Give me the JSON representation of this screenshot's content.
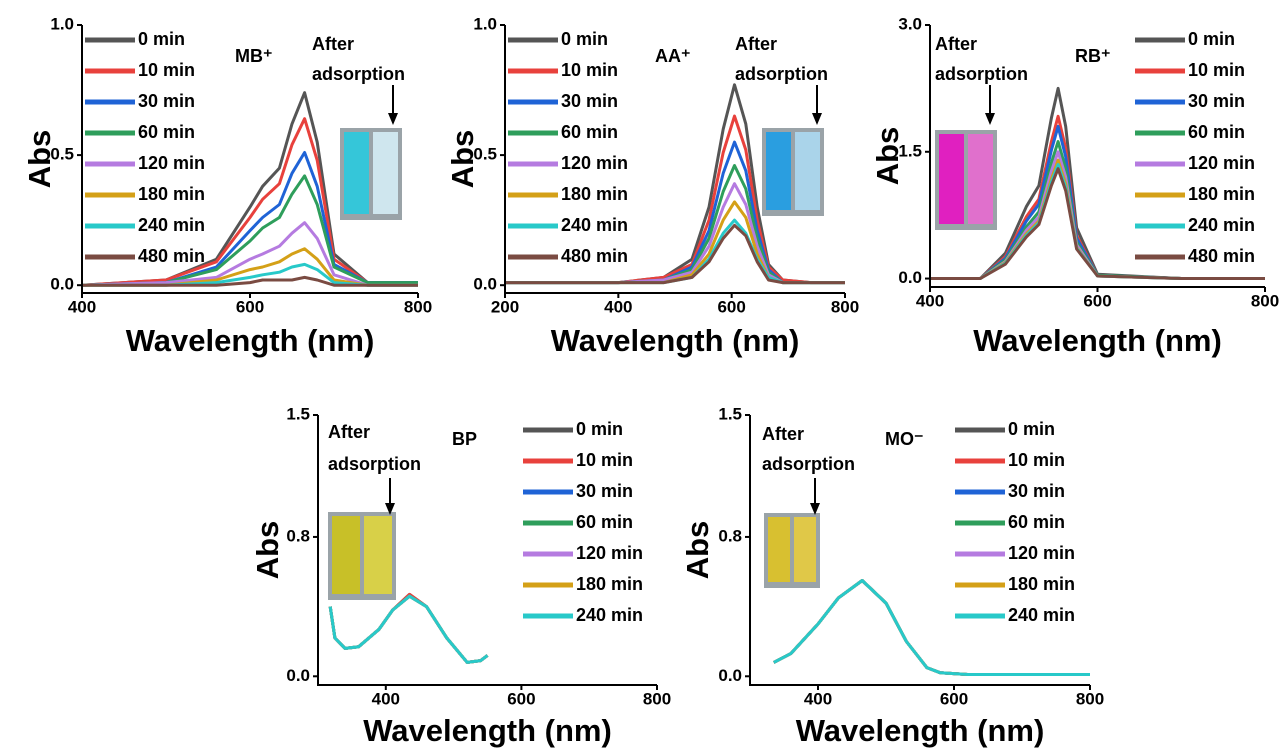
{
  "chart_data": [
    {
      "type": "line",
      "annotation": "MB⁺",
      "after_label": [
        "After",
        "adsorption"
      ],
      "xlabel": "Wavelength (nm)",
      "ylabel": "Abs",
      "xlim": [
        400,
        800
      ],
      "ylim": [
        -0.03,
        1.0
      ],
      "xticks": [
        400,
        600,
        800
      ],
      "yticks": [
        {
          "value": 0,
          "label": "0.0"
        },
        0.5,
        {
          "value": 1,
          "label": "1.0"
        }
      ],
      "x": [
        400,
        500,
        560,
        600,
        615,
        635,
        650,
        665,
        680,
        700,
        740,
        800
      ],
      "series": [
        {
          "name": "0 min",
          "color": "#555555",
          "values": [
            0,
            0.02,
            0.1,
            0.3,
            0.38,
            0.45,
            0.62,
            0.74,
            0.55,
            0.12,
            0.01,
            0.01
          ]
        },
        {
          "name": "10 min",
          "color": "#e8413c",
          "values": [
            0,
            0.02,
            0.09,
            0.26,
            0.33,
            0.39,
            0.54,
            0.64,
            0.48,
            0.1,
            0.01,
            0.01
          ]
        },
        {
          "name": "30 min",
          "color": "#1f63d6",
          "values": [
            0,
            0.01,
            0.07,
            0.21,
            0.26,
            0.31,
            0.43,
            0.51,
            0.38,
            0.08,
            0.01,
            0.01
          ]
        },
        {
          "name": "60 min",
          "color": "#2e9e5b",
          "values": [
            0,
            0.01,
            0.06,
            0.17,
            0.22,
            0.26,
            0.35,
            0.42,
            0.31,
            0.07,
            0.01,
            0.01
          ]
        },
        {
          "name": "120 min",
          "color": "#b57be0",
          "values": [
            0,
            0.01,
            0.03,
            0.1,
            0.12,
            0.15,
            0.2,
            0.24,
            0.18,
            0.04,
            0,
            0
          ]
        },
        {
          "name": "180 min",
          "color": "#d4a017",
          "values": [
            0,
            0,
            0.02,
            0.06,
            0.07,
            0.09,
            0.12,
            0.14,
            0.1,
            0.02,
            0,
            0
          ]
        },
        {
          "name": "240 min",
          "color": "#28c9c9",
          "values": [
            0,
            0,
            0.01,
            0.03,
            0.04,
            0.05,
            0.07,
            0.08,
            0.06,
            0.01,
            0,
            0
          ]
        },
        {
          "name": "480 min",
          "color": "#7a4b42",
          "values": [
            0,
            0,
            0,
            0.01,
            0.02,
            0.02,
            0.02,
            0.03,
            0.02,
            0,
            0,
            0
          ]
        }
      ]
    },
    {
      "type": "line",
      "annotation": "AA⁺",
      "after_label": [
        "After",
        "adsorption"
      ],
      "xlabel": "Wavelength (nm)",
      "ylabel": "Abs",
      "xlim": [
        200,
        800
      ],
      "ylim": [
        -0.03,
        1.0
      ],
      "xticks": [
        200,
        400,
        600,
        800
      ],
      "yticks": [
        {
          "value": 0,
          "label": "0.0"
        },
        0.5,
        {
          "value": 1,
          "label": "1.0"
        }
      ],
      "x": [
        200,
        400,
        480,
        530,
        560,
        585,
        605,
        625,
        645,
        665,
        690,
        740,
        800
      ],
      "series": [
        {
          "name": "0 min",
          "color": "#555555",
          "values": [
            0.01,
            0.01,
            0.03,
            0.1,
            0.3,
            0.6,
            0.77,
            0.62,
            0.3,
            0.08,
            0.02,
            0.01,
            0.01
          ]
        },
        {
          "name": "10 min",
          "color": "#e8413c",
          "values": [
            0.01,
            0.01,
            0.03,
            0.08,
            0.25,
            0.51,
            0.65,
            0.52,
            0.25,
            0.07,
            0.02,
            0.01,
            0.01
          ]
        },
        {
          "name": "30 min",
          "color": "#1f63d6",
          "values": [
            0.01,
            0.01,
            0.02,
            0.07,
            0.21,
            0.43,
            0.55,
            0.44,
            0.21,
            0.06,
            0.01,
            0.01,
            0.01
          ]
        },
        {
          "name": "60 min",
          "color": "#2e9e5b",
          "values": [
            0.01,
            0.01,
            0.02,
            0.06,
            0.18,
            0.36,
            0.46,
            0.37,
            0.18,
            0.05,
            0.01,
            0.01,
            0.01
          ]
        },
        {
          "name": "120 min",
          "color": "#b57be0",
          "values": [
            0.01,
            0.01,
            0.02,
            0.05,
            0.15,
            0.3,
            0.39,
            0.31,
            0.15,
            0.04,
            0.01,
            0.01,
            0.01
          ]
        },
        {
          "name": "180 min",
          "color": "#d4a017",
          "values": [
            0.01,
            0.01,
            0.01,
            0.04,
            0.12,
            0.25,
            0.32,
            0.26,
            0.12,
            0.03,
            0.01,
            0.01,
            0.01
          ]
        },
        {
          "name": "240 min",
          "color": "#28c9c9",
          "values": [
            0.01,
            0.01,
            0.01,
            0.03,
            0.1,
            0.2,
            0.25,
            0.2,
            0.1,
            0.03,
            0.01,
            0.01,
            0.01
          ]
        },
        {
          "name": "480 min",
          "color": "#7a4b42",
          "values": [
            0.01,
            0.01,
            0.01,
            0.03,
            0.09,
            0.18,
            0.23,
            0.19,
            0.09,
            0.02,
            0.01,
            0.01,
            0.01
          ]
        }
      ]
    },
    {
      "type": "line",
      "annotation": "RB⁺",
      "after_label": [
        "After",
        "adsorption"
      ],
      "xlabel": "Wavelength (nm)",
      "ylabel": "Abs",
      "xlim": [
        400,
        800
      ],
      "ylim": [
        -0.1,
        3.0
      ],
      "xticks": [
        400,
        600,
        800
      ],
      "yticks": [
        {
          "value": 0,
          "label": "0.0"
        },
        1.5,
        {
          "value": 3,
          "label": "3.0"
        }
      ],
      "x": [
        400,
        460,
        490,
        515,
        530,
        545,
        553,
        562,
        575,
        600,
        700,
        800
      ],
      "series": [
        {
          "name": "0 min",
          "color": "#555555",
          "values": [
            0,
            0,
            0.3,
            0.85,
            1.1,
            1.9,
            2.25,
            1.8,
            0.6,
            0.05,
            0,
            0
          ]
        },
        {
          "name": "10 min",
          "color": "#e8413c",
          "values": [
            0,
            0,
            0.26,
            0.73,
            0.94,
            1.62,
            1.92,
            1.54,
            0.51,
            0.04,
            0,
            0
          ]
        },
        {
          "name": "30 min",
          "color": "#1f63d6",
          "values": [
            0,
            0,
            0.24,
            0.68,
            0.88,
            1.52,
            1.8,
            1.44,
            0.48,
            0.04,
            0,
            0
          ]
        },
        {
          "name": "60 min",
          "color": "#2e9e5b",
          "values": [
            0,
            0,
            0.22,
            0.61,
            0.79,
            1.37,
            1.62,
            1.3,
            0.43,
            0.04,
            0,
            0
          ]
        },
        {
          "name": "120 min",
          "color": "#b57be0",
          "values": [
            0,
            0,
            0.2,
            0.57,
            0.73,
            1.27,
            1.5,
            1.2,
            0.4,
            0.03,
            0,
            0
          ]
        },
        {
          "name": "180 min",
          "color": "#d4a017",
          "values": [
            0,
            0,
            0.19,
            0.53,
            0.68,
            1.18,
            1.4,
            1.12,
            0.37,
            0.03,
            0,
            0
          ]
        },
        {
          "name": "240 min",
          "color": "#28c9c9",
          "values": [
            0,
            0,
            0.18,
            0.51,
            0.66,
            1.14,
            1.35,
            1.08,
            0.36,
            0.03,
            0,
            0
          ]
        },
        {
          "name": "480 min",
          "color": "#7a4b42",
          "values": [
            0,
            0,
            0.17,
            0.49,
            0.64,
            1.1,
            1.3,
            1.04,
            0.35,
            0.03,
            0,
            0
          ]
        }
      ]
    },
    {
      "type": "line",
      "annotation": "BP",
      "after_label": [
        "After",
        "adsorption"
      ],
      "xlabel": "Wavelength (nm)",
      "ylabel": "Abs",
      "xlim": [
        300,
        800
      ],
      "ylim": [
        -0.05,
        1.5
      ],
      "xticks": [
        400,
        600,
        800
      ],
      "yticks": [
        {
          "value": 0,
          "label": "0.0"
        },
        0.8,
        1.5
      ],
      "x": [
        318,
        325,
        340,
        360,
        390,
        410,
        435,
        460,
        490,
        520,
        540,
        550
      ],
      "series": [
        {
          "name": "0 min",
          "color": "#555555",
          "values": [
            0.4,
            0.22,
            0.16,
            0.17,
            0.27,
            0.38,
            0.47,
            0.4,
            0.22,
            0.08,
            0.09,
            0.12
          ]
        },
        {
          "name": "10 min",
          "color": "#e8413c",
          "values": [
            0.4,
            0.22,
            0.16,
            0.17,
            0.27,
            0.38,
            0.47,
            0.4,
            0.22,
            0.08,
            0.09,
            0.12
          ]
        },
        {
          "name": "30 min",
          "color": "#1f63d6",
          "values": [
            0.4,
            0.22,
            0.16,
            0.17,
            0.27,
            0.38,
            0.46,
            0.4,
            0.22,
            0.08,
            0.09,
            0.12
          ]
        },
        {
          "name": "60 min",
          "color": "#2e9e5b",
          "values": [
            0.4,
            0.22,
            0.16,
            0.17,
            0.27,
            0.38,
            0.46,
            0.4,
            0.22,
            0.08,
            0.09,
            0.12
          ]
        },
        {
          "name": "120 min",
          "color": "#b57be0",
          "values": [
            0.4,
            0.22,
            0.16,
            0.17,
            0.27,
            0.38,
            0.46,
            0.4,
            0.22,
            0.08,
            0.09,
            0.12
          ]
        },
        {
          "name": "180 min",
          "color": "#d4a017",
          "values": [
            0.4,
            0.22,
            0.16,
            0.17,
            0.27,
            0.38,
            0.46,
            0.4,
            0.22,
            0.08,
            0.09,
            0.12
          ]
        },
        {
          "name": "240 min",
          "color": "#28c9c9",
          "values": [
            0.4,
            0.22,
            0.16,
            0.17,
            0.27,
            0.38,
            0.46,
            0.4,
            0.22,
            0.08,
            0.09,
            0.12
          ]
        }
      ]
    },
    {
      "type": "line",
      "annotation": "MO⁻",
      "after_label": [
        "After",
        "adsorption"
      ],
      "xlabel": "Wavelength (nm)",
      "ylabel": "Abs",
      "xlim": [
        300,
        800
      ],
      "ylim": [
        -0.05,
        1.5
      ],
      "xticks": [
        400,
        600,
        800
      ],
      "yticks": [
        {
          "value": 0,
          "label": "0.0"
        },
        0.8,
        1.5
      ],
      "x": [
        335,
        360,
        400,
        430,
        465,
        500,
        530,
        560,
        580,
        620,
        700,
        800
      ],
      "series": [
        {
          "name": "0 min",
          "color": "#555555",
          "values": [
            0.08,
            0.13,
            0.3,
            0.45,
            0.55,
            0.42,
            0.2,
            0.05,
            0.02,
            0.01,
            0.01,
            0.01
          ]
        },
        {
          "name": "10 min",
          "color": "#e8413c",
          "values": [
            0.08,
            0.13,
            0.3,
            0.45,
            0.55,
            0.42,
            0.2,
            0.05,
            0.02,
            0.01,
            0.01,
            0.01
          ]
        },
        {
          "name": "30 min",
          "color": "#1f63d6",
          "values": [
            0.08,
            0.13,
            0.3,
            0.45,
            0.55,
            0.42,
            0.2,
            0.05,
            0.02,
            0.01,
            0.01,
            0.01
          ]
        },
        {
          "name": "60 min",
          "color": "#2e9e5b",
          "values": [
            0.08,
            0.13,
            0.3,
            0.45,
            0.55,
            0.42,
            0.2,
            0.05,
            0.02,
            0.01,
            0.01,
            0.01
          ]
        },
        {
          "name": "120 min",
          "color": "#b57be0",
          "values": [
            0.08,
            0.13,
            0.3,
            0.45,
            0.55,
            0.42,
            0.2,
            0.05,
            0.02,
            0.01,
            0.01,
            0.01
          ]
        },
        {
          "name": "180 min",
          "color": "#d4a017",
          "values": [
            0.08,
            0.13,
            0.3,
            0.45,
            0.55,
            0.42,
            0.2,
            0.05,
            0.02,
            0.01,
            0.01,
            0.01
          ]
        },
        {
          "name": "240 min",
          "color": "#28c9c9",
          "values": [
            0.08,
            0.13,
            0.3,
            0.45,
            0.55,
            0.42,
            0.2,
            0.05,
            0.02,
            0.01,
            0.01,
            0.01
          ]
        }
      ]
    }
  ]
}
